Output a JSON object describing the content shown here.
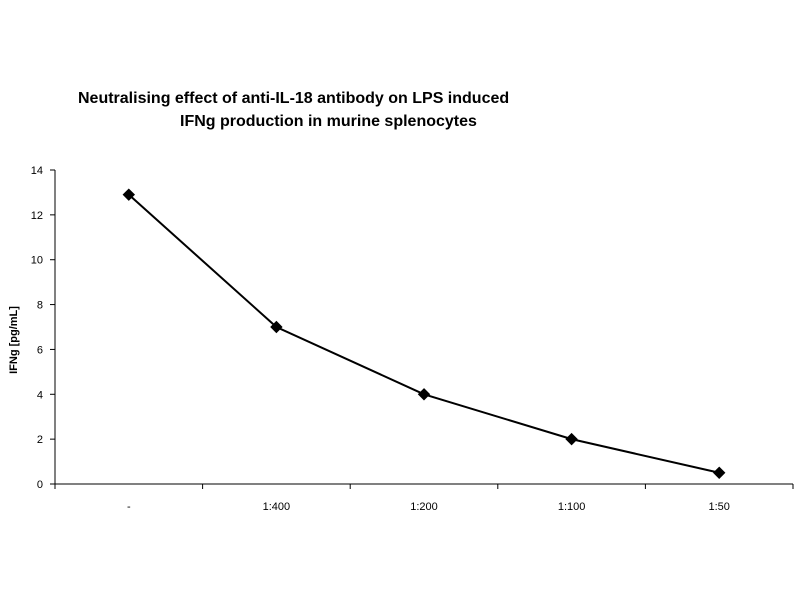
{
  "chart_data": {
    "type": "line",
    "title_lines": [
      "Neutralising effect of anti-IL-18 antibody on LPS induced",
      "IFNg production in murine splenocytes"
    ],
    "xlabel": "",
    "ylabel": "IFNg [pg/mL]",
    "categories": [
      "-",
      "1:400",
      "1:200",
      "1:100",
      "1:50"
    ],
    "ylim": [
      0,
      14
    ],
    "yticks": [
      0,
      2,
      4,
      6,
      8,
      10,
      12,
      14
    ],
    "series": [
      {
        "values": [
          12.9,
          7.0,
          4.0,
          2.0,
          0.5
        ],
        "color": "#000000",
        "marker": "diamond"
      }
    ],
    "grid": false,
    "legend": "none"
  }
}
